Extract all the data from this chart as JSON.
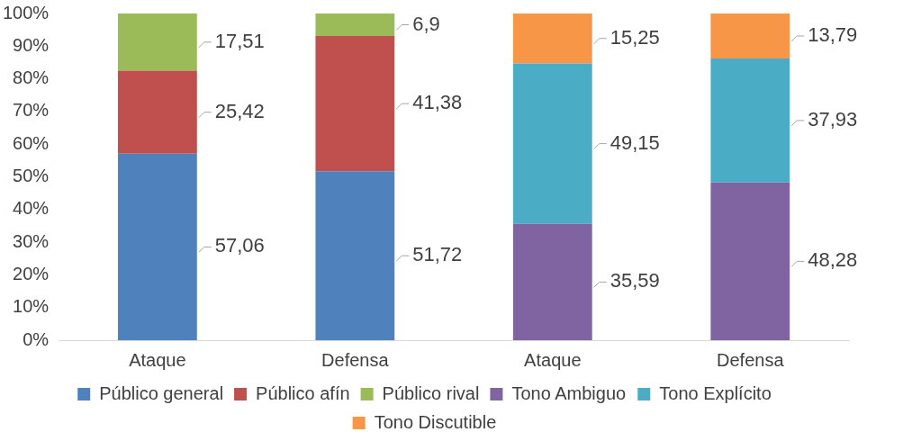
{
  "chart_data": {
    "type": "bar",
    "stacked": true,
    "categories": [
      "Ataque",
      "Defensa",
      "Ataque",
      "Defensa"
    ],
    "ylim": [
      0,
      100
    ],
    "yticks": [
      {
        "value": 0,
        "label": "0%"
      },
      {
        "value": 10,
        "label": "10%"
      },
      {
        "value": 20,
        "label": "20%"
      },
      {
        "value": 30,
        "label": "30%"
      },
      {
        "value": 40,
        "label": "40%"
      },
      {
        "value": 50,
        "label": "50%"
      },
      {
        "value": 60,
        "label": "60%"
      },
      {
        "value": 70,
        "label": "70%"
      },
      {
        "value": 80,
        "label": "80%"
      },
      {
        "value": 90,
        "label": "90%"
      },
      {
        "value": 100,
        "label": "100%"
      }
    ],
    "grid": false,
    "legend": "bottom",
    "series": [
      {
        "name": "Público general",
        "color": "#4f81bd",
        "values": [
          57.06,
          51.72,
          null,
          null
        ],
        "value_labels": [
          "57,06",
          "51,72",
          null,
          null
        ]
      },
      {
        "name": "Público afín",
        "color": "#c0504d",
        "values": [
          25.42,
          41.38,
          null,
          null
        ],
        "value_labels": [
          "25,42",
          "41,38",
          null,
          null
        ]
      },
      {
        "name": "Público rival",
        "color": "#9bbb59",
        "values": [
          17.51,
          6.9,
          null,
          null
        ],
        "value_labels": [
          "17,51",
          "6,9",
          null,
          null
        ]
      },
      {
        "name": "Tono Ambiguo",
        "color": "#8064a2",
        "values": [
          null,
          null,
          35.59,
          48.28
        ],
        "value_labels": [
          null,
          null,
          "35,59",
          "48,28"
        ]
      },
      {
        "name": "Tono Explícito",
        "color": "#4bacc6",
        "values": [
          null,
          null,
          49.15,
          37.93
        ],
        "value_labels": [
          null,
          null,
          "49,15",
          "37,93"
        ]
      },
      {
        "name": "Tono Discutible",
        "color": "#f79646",
        "values": [
          null,
          null,
          15.25,
          13.79
        ],
        "value_labels": [
          null,
          null,
          "15,25",
          "13,79"
        ]
      }
    ]
  }
}
